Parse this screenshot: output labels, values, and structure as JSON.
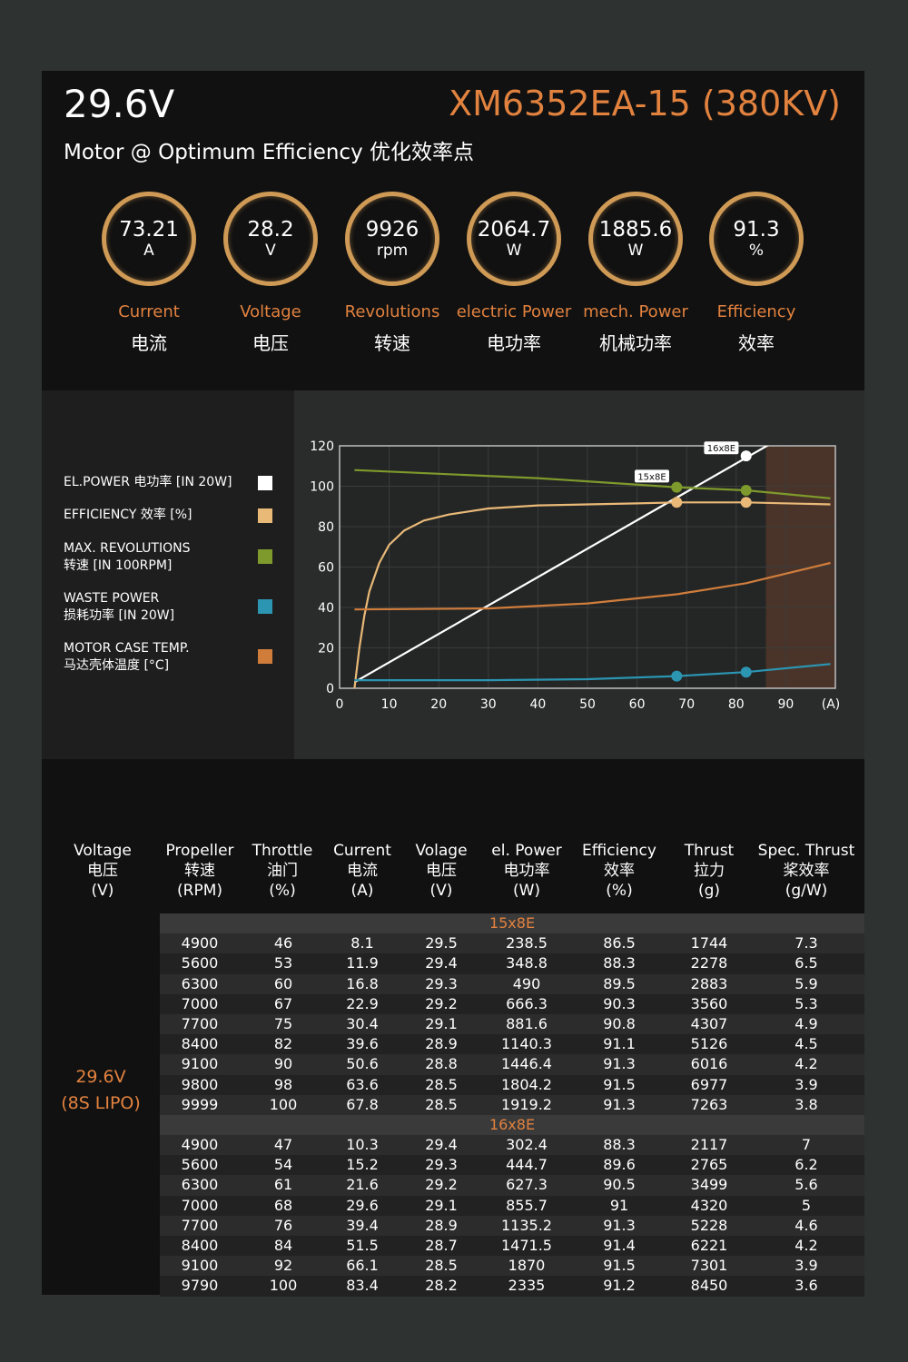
{
  "header": {
    "voltage": "29.6V",
    "model": "XM6352EA-15 (380KV)",
    "subtitle": "Motor @ Optimum Efficiency  优化效率点"
  },
  "gauges": [
    {
      "value": "73.21",
      "unit": "A",
      "label_en": "Current",
      "label_cn": "电流"
    },
    {
      "value": "28.2",
      "unit": "V",
      "label_en": "Voltage",
      "label_cn": "电压"
    },
    {
      "value": "9926",
      "unit": "rpm",
      "label_en": "Revolutions",
      "label_cn": "转速"
    },
    {
      "value": "2064.7",
      "unit": "W",
      "label_en": "electric Power",
      "label_cn": "电功率"
    },
    {
      "value": "1885.6",
      "unit": "W",
      "label_en": "mech. Power",
      "label_cn": "机械功率"
    },
    {
      "value": "91.3",
      "unit": "%",
      "label_en": "Efficiency",
      "label_cn": "效率"
    }
  ],
  "legend": [
    {
      "line1": "EL.POWER 电功率 [IN 20W]",
      "line2": "",
      "color": "#ffffff"
    },
    {
      "line1": "EFFICIENCY 效率 [%]",
      "line2": "",
      "color": "#e9b978"
    },
    {
      "line1": "MAX. REVOLUTIONS",
      "line2": "转速 [IN 100RPM]",
      "color": "#7e9a2c"
    },
    {
      "line1": "WASTE POWER",
      "line2": "损耗功率 [IN 20W]",
      "color": "#2b95b2"
    },
    {
      "line1": "MOTOR CASE TEMP.",
      "line2": "马达壳体温度 [°C]",
      "color": "#d07d3c"
    }
  ],
  "chart_data": {
    "type": "line",
    "xlim": [
      0,
      100
    ],
    "ylim": [
      0,
      120
    ],
    "x_ticks": [
      0,
      10,
      20,
      30,
      40,
      50,
      60,
      70,
      80,
      90
    ],
    "y_ticks": [
      0,
      20,
      40,
      60,
      80,
      100,
      120
    ],
    "x_unit": "(A)",
    "series": [
      {
        "key": "elpower",
        "color": "#ffffff",
        "points": [
          [
            3,
            3
          ],
          [
            99,
            138
          ]
        ]
      },
      {
        "key": "efficiency",
        "color": "#e9b978",
        "points": [
          [
            3,
            0
          ],
          [
            4,
            20
          ],
          [
            5,
            36
          ],
          [
            6,
            48
          ],
          [
            8,
            62
          ],
          [
            10,
            71
          ],
          [
            13,
            78
          ],
          [
            17,
            83
          ],
          [
            22,
            86
          ],
          [
            30,
            89
          ],
          [
            40,
            90.5
          ],
          [
            50,
            91
          ],
          [
            60,
            91.5
          ],
          [
            68,
            92
          ],
          [
            82,
            92
          ],
          [
            99,
            91
          ]
        ]
      },
      {
        "key": "revolutions",
        "color": "#7e9a2c",
        "points": [
          [
            3,
            108
          ],
          [
            40,
            104
          ],
          [
            68,
            99.5
          ],
          [
            82,
            98
          ],
          [
            99,
            94
          ]
        ]
      },
      {
        "key": "waste",
        "color": "#2b95b2",
        "points": [
          [
            3,
            4
          ],
          [
            30,
            4
          ],
          [
            50,
            4.5
          ],
          [
            68,
            6
          ],
          [
            82,
            8
          ],
          [
            99,
            12
          ]
        ]
      },
      {
        "key": "temp",
        "color": "#d07d3c",
        "points": [
          [
            3,
            39
          ],
          [
            30,
            39.5
          ],
          [
            50,
            42
          ],
          [
            68,
            46.5
          ],
          [
            82,
            52
          ],
          [
            99,
            62
          ]
        ]
      }
    ],
    "markers": [
      {
        "x": 68,
        "y": 99.5,
        "color": "#7e9a2c"
      },
      {
        "x": 82,
        "y": 98,
        "color": "#7e9a2c"
      },
      {
        "x": 68,
        "y": 92,
        "color": "#e9b978"
      },
      {
        "x": 82,
        "y": 92,
        "color": "#e9b978"
      },
      {
        "x": 68,
        "y": 6,
        "color": "#2b95b2"
      },
      {
        "x": 82,
        "y": 8,
        "color": "#2b95b2"
      },
      {
        "x": 82,
        "y": 115,
        "color": "#ffffff"
      }
    ],
    "callouts": [
      {
        "text": "15x8E",
        "x": 63,
        "y": 105
      },
      {
        "text": "16x8E",
        "x": 77,
        "y": 119
      }
    ],
    "shaded_region_x": [
      86,
      100
    ]
  },
  "table": {
    "headers": [
      [
        "Voltage",
        "电压",
        "(V)"
      ],
      [
        "Propeller",
        "转速",
        "(RPM)"
      ],
      [
        "Throttle",
        "油门",
        "(%)"
      ],
      [
        "Current",
        "电流",
        "(A)"
      ],
      [
        "Volage",
        "电压",
        "(V)"
      ],
      [
        "el. Power",
        "电功率",
        "(W)"
      ],
      [
        "Efficiency",
        "效率",
        "(%)"
      ],
      [
        "Thrust",
        "拉力",
        "(g)"
      ],
      [
        "Spec. Thrust",
        "桨效率",
        "(g/W)"
      ]
    ],
    "voltage_line1": "29.6V",
    "voltage_line2": "(8S LIPO)",
    "groups": [
      {
        "propeller": "15x8E",
        "rows": [
          [
            "4900",
            "46",
            "8.1",
            "29.5",
            "238.5",
            "86.5",
            "1744",
            "7.3"
          ],
          [
            "5600",
            "53",
            "11.9",
            "29.4",
            "348.8",
            "88.3",
            "2278",
            "6.5"
          ],
          [
            "6300",
            "60",
            "16.8",
            "29.3",
            "490",
            "89.5",
            "2883",
            "5.9"
          ],
          [
            "7000",
            "67",
            "22.9",
            "29.2",
            "666.3",
            "90.3",
            "3560",
            "5.3"
          ],
          [
            "7700",
            "75",
            "30.4",
            "29.1",
            "881.6",
            "90.8",
            "4307",
            "4.9"
          ],
          [
            "8400",
            "82",
            "39.6",
            "28.9",
            "1140.3",
            "91.1",
            "5126",
            "4.5"
          ],
          [
            "9100",
            "90",
            "50.6",
            "28.8",
            "1446.4",
            "91.3",
            "6016",
            "4.2"
          ],
          [
            "9800",
            "98",
            "63.6",
            "28.5",
            "1804.2",
            "91.5",
            "6977",
            "3.9"
          ],
          [
            "9999",
            "100",
            "67.8",
            "28.5",
            "1919.2",
            "91.3",
            "7263",
            "3.8"
          ]
        ]
      },
      {
        "propeller": "16x8E",
        "rows": [
          [
            "4900",
            "47",
            "10.3",
            "29.4",
            "302.4",
            "88.3",
            "2117",
            "7"
          ],
          [
            "5600",
            "54",
            "15.2",
            "29.3",
            "444.7",
            "89.6",
            "2765",
            "6.2"
          ],
          [
            "6300",
            "61",
            "21.6",
            "29.2",
            "627.3",
            "90.5",
            "3499",
            "5.6"
          ],
          [
            "7000",
            "68",
            "29.6",
            "29.1",
            "855.7",
            "91",
            "4320",
            "5"
          ],
          [
            "7700",
            "76",
            "39.4",
            "28.9",
            "1135.2",
            "91.3",
            "5228",
            "4.6"
          ],
          [
            "8400",
            "84",
            "51.5",
            "28.7",
            "1471.5",
            "91.4",
            "6221",
            "4.2"
          ],
          [
            "9100",
            "92",
            "66.1",
            "28.5",
            "1870",
            "91.5",
            "7301",
            "3.9"
          ],
          [
            "9790",
            "100",
            "83.4",
            "28.2",
            "2335",
            "91.2",
            "8450",
            "3.6"
          ]
        ]
      }
    ]
  }
}
